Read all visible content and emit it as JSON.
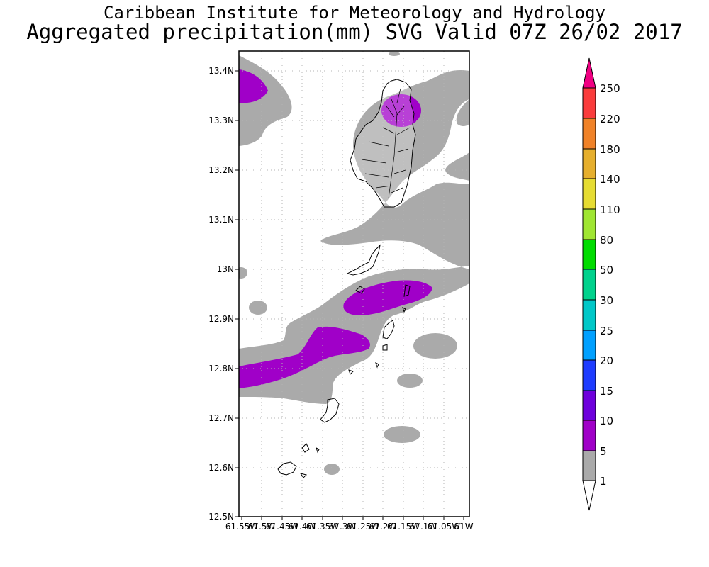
{
  "header": {
    "institute": "Caribbean Institute for Meteorology and Hydrology",
    "product": "Aggregated precipitation(mm) SVG Valid 07Z 26/02 2017"
  },
  "map": {
    "lat_labels": [
      "13.4N",
      "13.3N",
      "13.2N",
      "13.1N",
      "13N",
      "12.9N",
      "12.8N",
      "12.7N",
      "12.6N",
      "12.5N"
    ],
    "lon_labels": [
      "61.55W",
      "61.5W",
      "61.45W",
      "61.4W",
      "61.35W",
      "61.3W",
      "61.25W",
      "61.2W",
      "61.15W",
      "61.1W",
      "61.05W",
      "61W"
    ]
  },
  "colorbar": {
    "levels": [
      "1",
      "5",
      "10",
      "15",
      "20",
      "25",
      "30",
      "50",
      "80",
      "110",
      "140",
      "180",
      "220",
      "250"
    ],
    "colors": [
      "#aaaaaa",
      "#a000c8",
      "#6e00dc",
      "#1e3cff",
      "#00a0ff",
      "#00c8c8",
      "#00d28c",
      "#00dc00",
      "#a0e632",
      "#e6dc32",
      "#e6af2d",
      "#f08228",
      "#fa3c3c",
      "#f00082"
    ]
  }
}
